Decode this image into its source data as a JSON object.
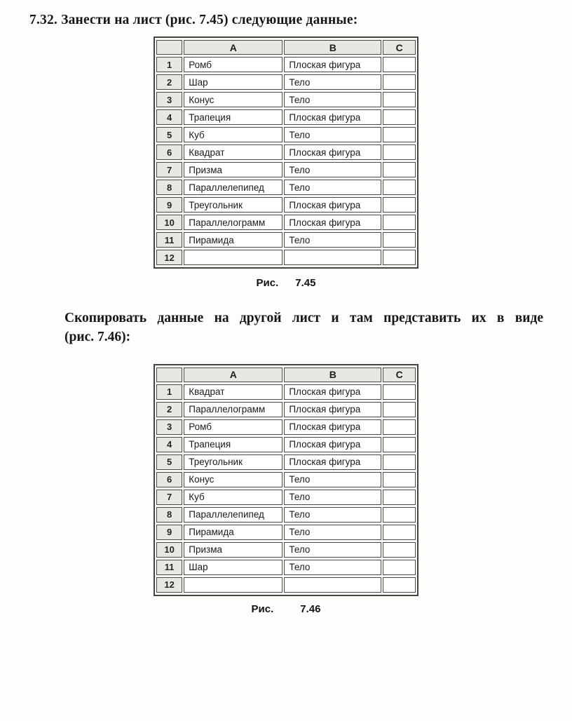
{
  "colors": {
    "page_bg": "#fdfdfc",
    "header_bg": "#e8e7e2",
    "grid_border": "#4a4944",
    "text": "#161616"
  },
  "exercise": {
    "title": "7.32. Занести на лист (рис. 7.45) следующие данные:",
    "copy_instruction_line1": "Скопировать данные на другой лист и там представить их в виде",
    "copy_instruction_line2": "(рис. 7.46):"
  },
  "figure1": {
    "caption_label": "Рис.",
    "caption_number": "7.45",
    "corner": "",
    "columns": [
      "A",
      "B",
      "C"
    ],
    "rows": [
      {
        "n": "1",
        "a": "Ромб",
        "b": "Плоская фигура",
        "c": ""
      },
      {
        "n": "2",
        "a": "Шар",
        "b": "Тело",
        "c": ""
      },
      {
        "n": "3",
        "a": "Конус",
        "b": "Тело",
        "c": ""
      },
      {
        "n": "4",
        "a": "Трапеция",
        "b": "Плоская фигура",
        "c": ""
      },
      {
        "n": "5",
        "a": "Куб",
        "b": "Тело",
        "c": ""
      },
      {
        "n": "6",
        "a": "Квадрат",
        "b": "Плоская фигура",
        "c": ""
      },
      {
        "n": "7",
        "a": "Призма",
        "b": "Тело",
        "c": ""
      },
      {
        "n": "8",
        "a": "Параллелепипед",
        "b": "Тело",
        "c": ""
      },
      {
        "n": "9",
        "a": "Треугольник",
        "b": "Плоская фигура",
        "c": ""
      },
      {
        "n": "10",
        "a": "Параллелограмм",
        "b": "Плоская фигура",
        "c": ""
      },
      {
        "n": "11",
        "a": "Пирамида",
        "b": "Тело",
        "c": ""
      },
      {
        "n": "12",
        "a": "",
        "b": "",
        "c": ""
      }
    ]
  },
  "figure2": {
    "caption_label": "Рис.",
    "caption_number": "7.46",
    "corner": "",
    "columns": [
      "A",
      "B",
      "C"
    ],
    "rows": [
      {
        "n": "1",
        "a": "Квадрат",
        "b": "Плоская фигура",
        "c": ""
      },
      {
        "n": "2",
        "a": "Параллелограмм",
        "b": "Плоская фигура",
        "c": ""
      },
      {
        "n": "3",
        "a": "Ромб",
        "b": "Плоская фигура",
        "c": ""
      },
      {
        "n": "4",
        "a": "Трапеция",
        "b": "Плоская фигура",
        "c": ""
      },
      {
        "n": "5",
        "a": "Треугольник",
        "b": "Плоская фигура",
        "c": ""
      },
      {
        "n": "6",
        "a": "Конус",
        "b": "Тело",
        "c": ""
      },
      {
        "n": "7",
        "a": "Куб",
        "b": "Тело",
        "c": ""
      },
      {
        "n": "8",
        "a": "Параллелепипед",
        "b": "Тело",
        "c": ""
      },
      {
        "n": "9",
        "a": "Пирамида",
        "b": "Тело",
        "c": ""
      },
      {
        "n": "10",
        "a": "Призма",
        "b": "Тело",
        "c": ""
      },
      {
        "n": "11",
        "a": "Шар",
        "b": "Тело",
        "c": ""
      },
      {
        "n": "12",
        "a": "",
        "b": "",
        "c": ""
      }
    ]
  }
}
